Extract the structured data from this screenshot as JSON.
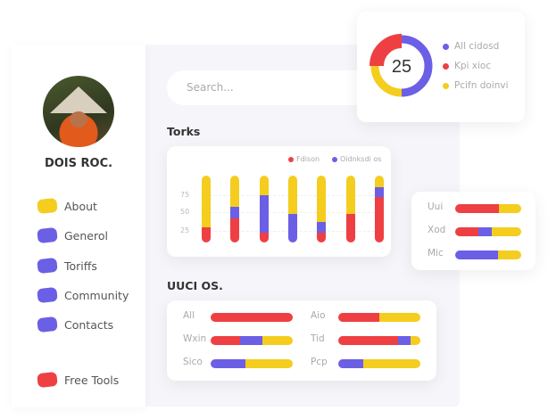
{
  "colors": {
    "red": "#ee4043",
    "blue": "#6b5fe6",
    "yellow": "#f4cd1e"
  },
  "profile": {
    "name": "DOIS ROC."
  },
  "sidebar": {
    "items": [
      {
        "label": "About",
        "color": "#f4cd1e"
      },
      {
        "label": "Generol",
        "color": "#6b5fe6"
      },
      {
        "label": "Toriffs",
        "color": "#6b5fe6"
      },
      {
        "label": "Community",
        "color": "#6b5fe6"
      },
      {
        "label": "Contacts",
        "color": "#6b5fe6"
      },
      {
        "label": "Free Tools",
        "color": "#ee4043"
      }
    ]
  },
  "search": {
    "placeholder": "Search..."
  },
  "donut": {
    "value": "25",
    "legend": [
      "All cidosd",
      "Kpi xioc",
      "Pcifn doinvi"
    ],
    "segments": [
      {
        "name": "All cidosd",
        "pct": 50
      },
      {
        "name": "Pcifn doinvi",
        "pct": 25
      },
      {
        "name": "Kpi xioc",
        "pct": 25
      }
    ]
  },
  "torks": {
    "title": "Torks"
  },
  "chart_data": {
    "type": "bar",
    "stacked": true,
    "legend": [
      "Fdison",
      "Oidnksdi os"
    ],
    "yticks": [
      "75",
      "50",
      "25"
    ],
    "bars": [
      {
        "red": 23,
        "blue": 0
      },
      {
        "red": 36,
        "blue": 17
      },
      {
        "red": 15,
        "blue": 56
      },
      {
        "red": 0,
        "blue": 43
      },
      {
        "red": 15,
        "blue": 16
      },
      {
        "red": 43,
        "blue": 0
      },
      {
        "red": 68,
        "blue": 15
      }
    ]
  },
  "side_bars": [
    {
      "label": "Uui",
      "red": 66,
      "blue": 0
    },
    {
      "label": "Xod",
      "red": 35,
      "blue": 20
    },
    {
      "label": "Mic",
      "red": 0,
      "blue": 65
    }
  ],
  "uuci": {
    "title": "UUCI OS.",
    "rows": [
      {
        "label": "All",
        "red": 100,
        "blue": 0
      },
      {
        "label": "Aio",
        "red": 50,
        "blue": 0
      },
      {
        "label": "Wxin",
        "red": 36,
        "blue": 27
      },
      {
        "label": "Tid",
        "red": 73,
        "blue": 15
      },
      {
        "label": "Sico",
        "red": 0,
        "blue": 42
      },
      {
        "label": "Pcp",
        "red": 0,
        "blue": 30
      }
    ]
  }
}
